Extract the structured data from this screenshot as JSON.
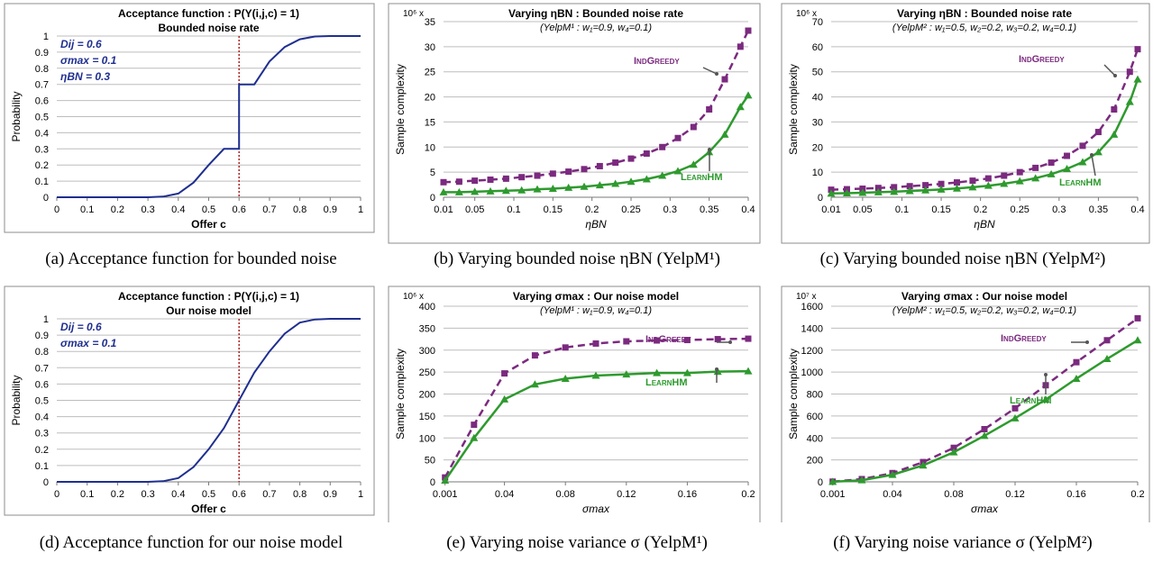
{
  "chart_data": [
    {
      "type": "line",
      "title": "Acceptance function : P(Y(i,j,c) = 1)",
      "subtitle": "Bounded noise rate",
      "xlabel": "Offer c",
      "ylabel": "Probability",
      "xlim": [
        0,
        1
      ],
      "ylim": [
        0,
        1
      ],
      "xticks": [
        "0",
        "0.1",
        "0.2",
        "0.3",
        "0.4",
        "0.5",
        "0.6",
        "0.7",
        "0.8",
        "0.9",
        "1"
      ],
      "yticks": [
        "0",
        "0.1",
        "0.2",
        "0.3",
        "0.4",
        "0.5",
        "0.6",
        "0.7",
        "0.8",
        "0.9",
        "1"
      ],
      "grid": true,
      "annotations": [
        "Dij = 0.6",
        "σmax = 0.1",
        "ηBN = 0.3"
      ],
      "vline_x": 0.6,
      "series": [
        {
          "color": "#1f2f8f",
          "x": [
            0,
            0.3,
            0.35,
            0.4,
            0.45,
            0.5,
            0.55,
            0.6,
            0.6,
            0.65,
            0.7,
            0.75,
            0.8,
            0.85,
            0.9,
            1
          ],
          "y": [
            0,
            0,
            0.004,
            0.023,
            0.091,
            0.2,
            0.3,
            0.3,
            0.7,
            0.7,
            0.842,
            0.932,
            0.98,
            0.997,
            1,
            1
          ]
        }
      ],
      "caption": "(a) Acceptance function for bounded noise"
    },
    {
      "type": "line",
      "title": "Varying ηBN : Bounded noise rate",
      "subtitle": "(YelpM¹ : w₁=0.9, w₄=0.1)",
      "xlabel": "ηBN",
      "ylabel": "Sample complexity",
      "scale_label": "10⁶ x",
      "xlim": [
        0.01,
        0.4
      ],
      "ylim": [
        0,
        35
      ],
      "xticks": [
        "0.01",
        "0.05",
        "0.1",
        "0.15",
        "0.2",
        "0.25",
        "0.3",
        "0.35",
        "0.4"
      ],
      "yticks": [
        "0",
        "5",
        "10",
        "15",
        "20",
        "25",
        "30",
        "35"
      ],
      "grid": true,
      "x": [
        0.01,
        0.03,
        0.05,
        0.07,
        0.09,
        0.11,
        0.13,
        0.15,
        0.17,
        0.19,
        0.21,
        0.23,
        0.25,
        0.27,
        0.29,
        0.31,
        0.33,
        0.35,
        0.37,
        0.39,
        0.4
      ],
      "series": [
        {
          "name": "IndGreedy",
          "color": "#7b2a7f",
          "dashed": true,
          "marker": "square",
          "values": [
            3,
            3.1,
            3.3,
            3.5,
            3.7,
            4,
            4.3,
            4.7,
            5.1,
            5.6,
            6.2,
            6.9,
            7.7,
            8.7,
            10,
            11.8,
            14,
            17.5,
            23.5,
            30,
            33.2
          ]
        },
        {
          "name": "LearnHM",
          "color": "#2e9a2e",
          "dashed": false,
          "marker": "triangle",
          "values": [
            1,
            1,
            1.1,
            1.2,
            1.3,
            1.4,
            1.6,
            1.7,
            1.9,
            2.1,
            2.4,
            2.7,
            3.1,
            3.6,
            4.3,
            5.2,
            6.5,
            9,
            12.5,
            18,
            20.3
          ]
        }
      ],
      "caption": "(b) Varying bounded noise ηBN (YelpM¹)"
    },
    {
      "type": "line",
      "title": "Varying ηBN : Bounded noise rate",
      "subtitle": "(YelpM² : w₁=0.5, w₂=0.2, w₃=0.2, w₄=0.1)",
      "xlabel": "ηBN",
      "ylabel": "Sample complexity",
      "scale_label": "10⁶ x",
      "xlim": [
        0.01,
        0.4
      ],
      "ylim": [
        0,
        70
      ],
      "xticks": [
        "0.01",
        "0.05",
        "0.1",
        "0.15",
        "0.2",
        "0.25",
        "0.3",
        "0.35",
        "0.4"
      ],
      "yticks": [
        "0",
        "10",
        "20",
        "30",
        "40",
        "50",
        "60",
        "70"
      ],
      "grid": true,
      "x": [
        0.01,
        0.03,
        0.05,
        0.07,
        0.09,
        0.11,
        0.13,
        0.15,
        0.17,
        0.19,
        0.21,
        0.23,
        0.25,
        0.27,
        0.29,
        0.31,
        0.33,
        0.35,
        0.37,
        0.39,
        0.4
      ],
      "series": [
        {
          "name": "IndGreedy",
          "color": "#7b2a7f",
          "dashed": true,
          "marker": "square",
          "values": [
            3,
            3.2,
            3.4,
            3.7,
            4,
            4.4,
            4.8,
            5.3,
            5.9,
            6.6,
            7.5,
            8.6,
            10,
            11.7,
            13.8,
            16.5,
            20.5,
            26,
            35,
            50,
            59
          ]
        },
        {
          "name": "LearnHM",
          "color": "#2e9a2e",
          "dashed": false,
          "marker": "triangle",
          "values": [
            1.5,
            1.6,
            1.8,
            2,
            2.2,
            2.5,
            2.8,
            3.1,
            3.5,
            4,
            4.6,
            5.4,
            6.4,
            7.6,
            9.2,
            11.3,
            14,
            18,
            25,
            38,
            47
          ]
        }
      ],
      "caption": "(c) Varying bounded noise ηBN (YelpM²)"
    },
    {
      "type": "line",
      "title": "Acceptance function : P(Y(i,j,c) = 1)",
      "subtitle": "Our noise model",
      "xlabel": "Offer c",
      "ylabel": "Probability",
      "xlim": [
        0,
        1
      ],
      "ylim": [
        0,
        1
      ],
      "xticks": [
        "0",
        "0.1",
        "0.2",
        "0.3",
        "0.4",
        "0.5",
        "0.6",
        "0.7",
        "0.8",
        "0.9",
        "1"
      ],
      "yticks": [
        "0",
        "0.1",
        "0.2",
        "0.3",
        "0.4",
        "0.5",
        "0.6",
        "0.7",
        "0.8",
        "0.9",
        "1"
      ],
      "grid": true,
      "annotations": [
        "Dij = 0.6",
        "σmax = 0.1"
      ],
      "vline_x": 0.6,
      "series": [
        {
          "color": "#1f2f8f",
          "x": [
            0,
            0.3,
            0.35,
            0.4,
            0.45,
            0.5,
            0.55,
            0.6,
            0.65,
            0.7,
            0.75,
            0.8,
            0.85,
            0.9,
            1
          ],
          "y": [
            0,
            0,
            0.004,
            0.023,
            0.091,
            0.2,
            0.33,
            0.5,
            0.67,
            0.8,
            0.909,
            0.977,
            0.996,
            1,
            1
          ]
        }
      ],
      "caption": "(d) Acceptance function for our noise model"
    },
    {
      "type": "line",
      "title": "Varying σmax : Our noise model",
      "subtitle": "(YelpM¹ : w₁=0.9, w₄=0.1)",
      "xlabel": "σmax",
      "ylabel": "Sample complexity",
      "scale_label": "10⁶ x",
      "xlim": [
        0,
        0.2
      ],
      "ylim": [
        0,
        400
      ],
      "xticks": [
        "0.001",
        "0.04",
        "0.08",
        "0.12",
        "0.16",
        "0.2"
      ],
      "yticks": [
        "0",
        "50",
        "100",
        "150",
        "200",
        "250",
        "300",
        "350",
        "400"
      ],
      "grid": true,
      "x": [
        0.001,
        0.02,
        0.04,
        0.06,
        0.08,
        0.1,
        0.12,
        0.14,
        0.16,
        0.18,
        0.2
      ],
      "series": [
        {
          "name": "IndGreedy",
          "color": "#7b2a7f",
          "dashed": true,
          "marker": "square",
          "values": [
            10,
            130,
            247,
            288,
            306,
            315,
            320,
            322,
            323,
            325,
            326
          ]
        },
        {
          "name": "LearnHM",
          "color": "#2e9a2e",
          "dashed": false,
          "marker": "triangle",
          "values": [
            3,
            100,
            188,
            222,
            235,
            242,
            245,
            248,
            248,
            251,
            252
          ]
        }
      ],
      "caption": "(e) Varying noise variance σ (YelpM¹)"
    },
    {
      "type": "line",
      "title": "Varying σmax : Our noise model",
      "subtitle": "(YelpM² : w₁=0.5, w₂=0.2, w₃=0.2, w₄=0.1)",
      "xlabel": "σmax",
      "ylabel": "Sample complexity",
      "scale_label": "10⁷ x",
      "xlim": [
        0,
        0.2
      ],
      "ylim": [
        0,
        1600
      ],
      "xticks": [
        "0.001",
        "0.04",
        "0.08",
        "0.12",
        "0.16",
        "0.2"
      ],
      "yticks": [
        "0",
        "200",
        "400",
        "600",
        "800",
        "1000",
        "1200",
        "1400",
        "1600"
      ],
      "grid": true,
      "x": [
        0.001,
        0.02,
        0.04,
        0.06,
        0.08,
        0.1,
        0.12,
        0.14,
        0.16,
        0.18,
        0.2
      ],
      "series": [
        {
          "name": "IndGreedy",
          "color": "#7b2a7f",
          "dashed": true,
          "marker": "square",
          "values": [
            2,
            25,
            80,
            180,
            310,
            480,
            670,
            880,
            1090,
            1290,
            1490
          ]
        },
        {
          "name": "LearnHM",
          "color": "#2e9a2e",
          "dashed": false,
          "marker": "triangle",
          "values": [
            1,
            15,
            65,
            150,
            270,
            420,
            580,
            750,
            940,
            1120,
            1290
          ]
        }
      ],
      "caption": "(f) Varying noise variance σ (YelpM²)"
    }
  ]
}
